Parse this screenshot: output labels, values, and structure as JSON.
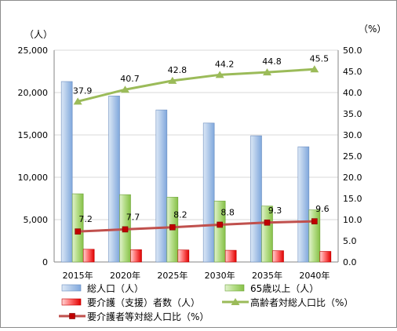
{
  "chart_data": {
    "type": "bar",
    "categories": [
      "2015年",
      "2020年",
      "2025年",
      "2030年",
      "2035年",
      "2040年"
    ],
    "left_unit": "（人）",
    "right_unit": "（%）",
    "ylim_left": [
      0,
      25000
    ],
    "ylim_right": [
      0.0,
      50.0
    ],
    "yticks_left": [
      "0",
      "5,000",
      "10,000",
      "15,000",
      "20,000",
      "25,000"
    ],
    "yticks_right": [
      "0.0",
      "5.0",
      "10.0",
      "15.0",
      "20.0",
      "25.0",
      "30.0",
      "35.0",
      "40.0",
      "45.0",
      "50.0"
    ],
    "grid": true,
    "legend_position": "bottom",
    "series": [
      {
        "name": "総人口（人）",
        "type": "bar",
        "axis": "left",
        "color": "#8eb4e3",
        "values": [
          21300,
          19600,
          17950,
          16400,
          14900,
          13600
        ]
      },
      {
        "name": "65歳以上（人）",
        "type": "bar",
        "axis": "left",
        "color": "#92d050",
        "values": [
          8050,
          7950,
          7650,
          7200,
          6600,
          6150
        ]
      },
      {
        "name": "要介護（支援）者数（人）",
        "type": "bar",
        "axis": "left",
        "color": "#ff0000",
        "values": [
          1500,
          1450,
          1420,
          1380,
          1330,
          1250
        ]
      },
      {
        "name": "高齢者対総人口比（%）",
        "type": "line",
        "axis": "right",
        "color": "#9bbb59",
        "marker": "triangle",
        "values": [
          37.9,
          40.7,
          42.8,
          44.2,
          44.8,
          45.5
        ],
        "labels": [
          "37.9",
          "40.7",
          "42.8",
          "44.2",
          "44.8",
          "45.5"
        ]
      },
      {
        "name": "要介護者等対総人口比（%）",
        "type": "line",
        "axis": "right",
        "color": "#c0504d",
        "marker": "square",
        "values": [
          7.2,
          7.7,
          8.2,
          8.8,
          9.3,
          9.6
        ],
        "labels": [
          "7.2",
          "7.7",
          "8.2",
          "8.8",
          "9.3",
          "9.6"
        ]
      }
    ]
  }
}
